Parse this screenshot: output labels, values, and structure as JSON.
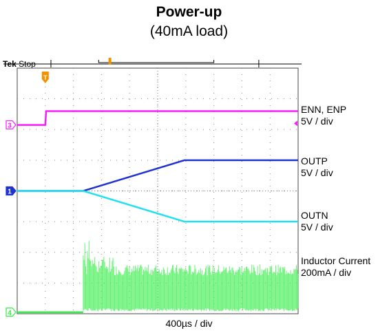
{
  "chart_data": {
    "type": "line",
    "title": "Power-up",
    "subtitle": "(40mA load)",
    "xlabel": "400µs / div",
    "scope_header": {
      "brand": "Tek",
      "status": "Stop"
    },
    "x_range_div": [
      0,
      10
    ],
    "y_range_div": [
      0,
      8
    ],
    "grid": true,
    "trigger_marker_div": 1.0,
    "channels": [
      {
        "id": "3",
        "name": "ENN, ENP",
        "scale": "5V / div",
        "color": "#ff19ff",
        "baseline_div": 6.15,
        "points": [
          [
            0,
            6.15
          ],
          [
            1.0,
            6.15
          ],
          [
            1.03,
            6.6
          ],
          [
            10,
            6.6
          ]
        ]
      },
      {
        "id": "1",
        "name": "OUTP",
        "scale": "5V / div",
        "color": "#1f33d0",
        "baseline_div": 4.0,
        "points": [
          [
            0,
            4.0
          ],
          [
            2.35,
            4.0
          ],
          [
            5.95,
            5.0
          ],
          [
            10,
            5.0
          ]
        ]
      },
      {
        "id": "",
        "name": "OUTN",
        "scale": "5V / div",
        "color": "#22e0f0",
        "baseline_div": 4.0,
        "points": [
          [
            0,
            4.0
          ],
          [
            2.35,
            4.0
          ],
          [
            5.95,
            3.0
          ],
          [
            10,
            3.0
          ]
        ]
      },
      {
        "id": "4",
        "name": "Inductor Current",
        "scale": "200mA / div",
        "color": "#33ee44",
        "baseline_div": 0.05,
        "points": [
          [
            0,
            0.05
          ],
          [
            2.35,
            0.05
          ],
          [
            2.38,
            1.2
          ],
          [
            10,
            1.2
          ]
        ]
      }
    ]
  }
}
